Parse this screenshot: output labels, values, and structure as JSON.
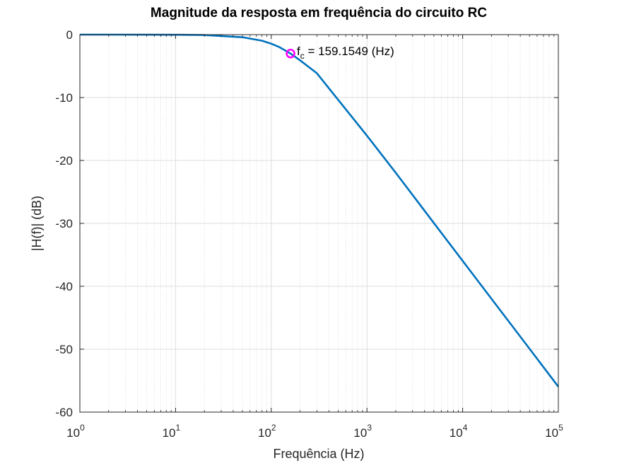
{
  "chart_data": {
    "type": "line",
    "title": "Magnitude da resposta em frequência do circuito RC",
    "xlabel": "Frequência (Hz)",
    "ylabel": "|H(f)| (dB)",
    "xscale": "log",
    "xlim": [
      1,
      100000
    ],
    "ylim": [
      -60,
      0
    ],
    "grid": true,
    "minor_grid": true,
    "yticks": [
      "0",
      "-10",
      "-20",
      "-30",
      "-40",
      "-50",
      "-60"
    ],
    "xticks": [
      {
        "base": "10",
        "exp": "0"
      },
      {
        "base": "10",
        "exp": "1"
      },
      {
        "base": "10",
        "exp": "2"
      },
      {
        "base": "10",
        "exp": "3"
      },
      {
        "base": "10",
        "exp": "4"
      },
      {
        "base": "10",
        "exp": "5"
      }
    ],
    "series": [
      {
        "x": [
          1,
          2,
          5,
          10,
          20,
          50,
          80,
          100,
          120,
          159.1549,
          200,
          300,
          500,
          1000,
          2000,
          5000,
          10000,
          20000,
          50000,
          100000
        ],
        "y": [
          0,
          -0.0007,
          -0.0043,
          -0.017,
          -0.068,
          -0.41,
          -0.97,
          -1.44,
          -1.94,
          -3.01,
          -4.08,
          -6.14,
          -10.36,
          -16.06,
          -21.96,
          -29.94,
          -35.96,
          -41.98,
          -49.93,
          -55.96
        ],
        "color": "#0072BD"
      }
    ],
    "marker": {
      "x": 159.1549,
      "y": -3.0103,
      "color": "#FF00FF"
    },
    "annotation": {
      "main": "f",
      "sub": "c",
      "rest": " = 159.1549 (Hz)"
    }
  }
}
